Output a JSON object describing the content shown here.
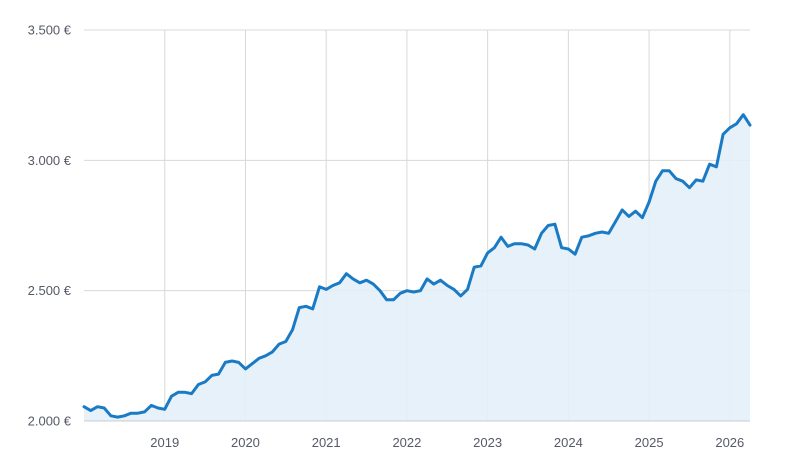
{
  "chart_data": {
    "type": "area",
    "title": "",
    "xlabel": "",
    "ylabel": "",
    "ylim": [
      2000,
      3500
    ],
    "xlim": [
      "2018-01",
      "2026-04"
    ],
    "grid": true,
    "legend": "none",
    "y_ticks": [
      {
        "value": 2000,
        "label": "2.000 €"
      },
      {
        "value": 2500,
        "label": "2.500 €"
      },
      {
        "value": 3000,
        "label": "3.000 €"
      },
      {
        "value": 3500,
        "label": "3.500 €"
      }
    ],
    "x_ticks": [
      {
        "value": "2019",
        "label": "2019"
      },
      {
        "value": "2020",
        "label": "2020"
      },
      {
        "value": "2021",
        "label": "2021"
      },
      {
        "value": "2022",
        "label": "2022"
      },
      {
        "value": "2023",
        "label": "2023"
      },
      {
        "value": "2024",
        "label": "2024"
      },
      {
        "value": "2025",
        "label": "2025"
      },
      {
        "value": "2026",
        "label": "2026"
      }
    ],
    "colors": {
      "line": "#1a7bc4",
      "fill": "#e3f0f9",
      "grid": "#d8d8d8",
      "axis": "#c8ccd2"
    },
    "series": [
      {
        "x": [
          "2018-01",
          "2018-02",
          "2018-03",
          "2018-04",
          "2018-05",
          "2018-06",
          "2018-07",
          "2018-08",
          "2018-09",
          "2018-10",
          "2018-11",
          "2018-12",
          "2019-01",
          "2019-02",
          "2019-03",
          "2019-04",
          "2019-05",
          "2019-06",
          "2019-07",
          "2019-08",
          "2019-09",
          "2019-10",
          "2019-11",
          "2019-12",
          "2020-01",
          "2020-02",
          "2020-03",
          "2020-04",
          "2020-05",
          "2020-06",
          "2020-07",
          "2020-08",
          "2020-09",
          "2020-10",
          "2020-11",
          "2020-12",
          "2021-01",
          "2021-02",
          "2021-03",
          "2021-04",
          "2021-05",
          "2021-06",
          "2021-07",
          "2021-08",
          "2021-09",
          "2021-10",
          "2021-11",
          "2021-12",
          "2022-01",
          "2022-02",
          "2022-03",
          "2022-04",
          "2022-05",
          "2022-06",
          "2022-07",
          "2022-08",
          "2022-09",
          "2022-10",
          "2022-11",
          "2022-12",
          "2023-01",
          "2023-02",
          "2023-03",
          "2023-04",
          "2023-05",
          "2023-06",
          "2023-07",
          "2023-08",
          "2023-09",
          "2023-10",
          "2023-11",
          "2023-12",
          "2024-01",
          "2024-02",
          "2024-03",
          "2024-04",
          "2024-05",
          "2024-06",
          "2024-07",
          "2024-08",
          "2024-09",
          "2024-10",
          "2024-11",
          "2024-12",
          "2025-01",
          "2025-02",
          "2025-03",
          "2025-04",
          "2025-05",
          "2025-06",
          "2025-07",
          "2025-08",
          "2025-09",
          "2025-10",
          "2025-11",
          "2025-12",
          "2026-01",
          "2026-02",
          "2026-03",
          "2026-04"
        ],
        "values": [
          2055,
          2040,
          2055,
          2050,
          2020,
          2015,
          2020,
          2030,
          2030,
          2035,
          2060,
          2050,
          2045,
          2095,
          2110,
          2110,
          2105,
          2140,
          2150,
          2175,
          2180,
          2225,
          2230,
          2225,
          2200,
          2220,
          2240,
          2250,
          2265,
          2295,
          2305,
          2350,
          2435,
          2440,
          2430,
          2515,
          2505,
          2520,
          2530,
          2565,
          2545,
          2530,
          2540,
          2525,
          2500,
          2465,
          2465,
          2490,
          2500,
          2495,
          2500,
          2545,
          2525,
          2540,
          2520,
          2505,
          2480,
          2505,
          2590,
          2595,
          2645,
          2665,
          2705,
          2670,
          2680,
          2680,
          2675,
          2660,
          2720,
          2750,
          2755,
          2665,
          2660,
          2640,
          2705,
          2710,
          2720,
          2725,
          2720,
          2765,
          2810,
          2785,
          2805,
          2780,
          2840,
          2920,
          2960,
          2960,
          2930,
          2920,
          2895,
          2925,
          2920,
          2985,
          2975,
          3100,
          3125,
          3140,
          3175,
          3135
        ]
      }
    ]
  }
}
